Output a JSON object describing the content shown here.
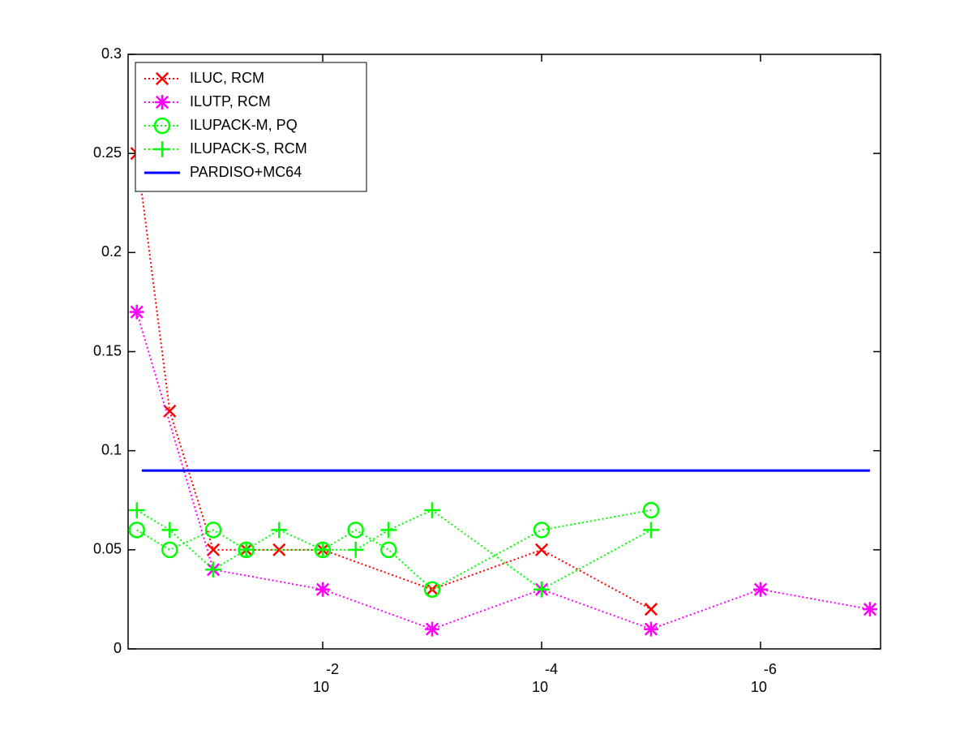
{
  "chart_data": {
    "type": "line",
    "xscale": "log",
    "xreversed": true,
    "xlim": [
      0.6,
      8e-08
    ],
    "xticks": [
      {
        "value": 0.01,
        "label": "10",
        "exponent": "-2"
      },
      {
        "value": 0.0001,
        "label": "10",
        "exponent": "-4"
      },
      {
        "value": 1e-06,
        "label": "10",
        "exponent": "-6"
      }
    ],
    "ylim": [
      0,
      0.3
    ],
    "yticks": [
      0,
      0.05,
      0.1,
      0.15,
      0.2,
      0.25,
      0.3
    ],
    "legend": "upper left",
    "series": [
      {
        "name": "ILUC, RCM",
        "color": "#ff0000",
        "marker": "x",
        "linestyle": "dotted",
        "x": [
          0.5,
          0.25,
          0.1,
          0.05,
          0.025,
          0.01,
          0.001,
          0.0001,
          1e-05
        ],
        "values": [
          0.25,
          0.12,
          0.05,
          0.05,
          0.05,
          0.05,
          0.03,
          0.05,
          0.02
        ]
      },
      {
        "name": "ILUTP, RCM",
        "color": "#ff00ff",
        "marker": "asterisk",
        "linestyle": "dotted",
        "x": [
          0.5,
          0.1,
          0.01,
          0.001,
          0.0001,
          1e-05,
          1e-06,
          1e-07
        ],
        "values": [
          0.17,
          0.04,
          0.03,
          0.01,
          0.03,
          0.01,
          0.03,
          0.02
        ]
      },
      {
        "name": "ILUPACK-M, PQ",
        "color": "#00ff00",
        "marker": "circle",
        "linestyle": "dotted",
        "x": [
          0.5,
          0.25,
          0.1,
          0.05,
          0.01,
          0.005,
          0.0025,
          0.001,
          0.0001,
          1e-05
        ],
        "values": [
          0.06,
          0.05,
          0.06,
          0.05,
          0.05,
          0.06,
          0.05,
          0.03,
          0.06,
          0.07
        ]
      },
      {
        "name": "ILUPACK-S, RCM",
        "color": "#00ff00",
        "marker": "plus",
        "linestyle": "dotted",
        "x": [
          0.5,
          0.25,
          0.1,
          0.05,
          0.025,
          0.01,
          0.005,
          0.0025,
          0.001,
          0.0001,
          1e-05
        ],
        "values": [
          0.07,
          0.06,
          0.04,
          0.05,
          0.06,
          0.05,
          0.05,
          0.06,
          0.07,
          0.03,
          0.06
        ]
      },
      {
        "name": "PARDISO+MC64",
        "color": "#0000ff",
        "marker": "none",
        "linestyle": "solid",
        "x": [
          0.45,
          1e-07
        ],
        "values": [
          0.09,
          0.09
        ]
      }
    ]
  }
}
